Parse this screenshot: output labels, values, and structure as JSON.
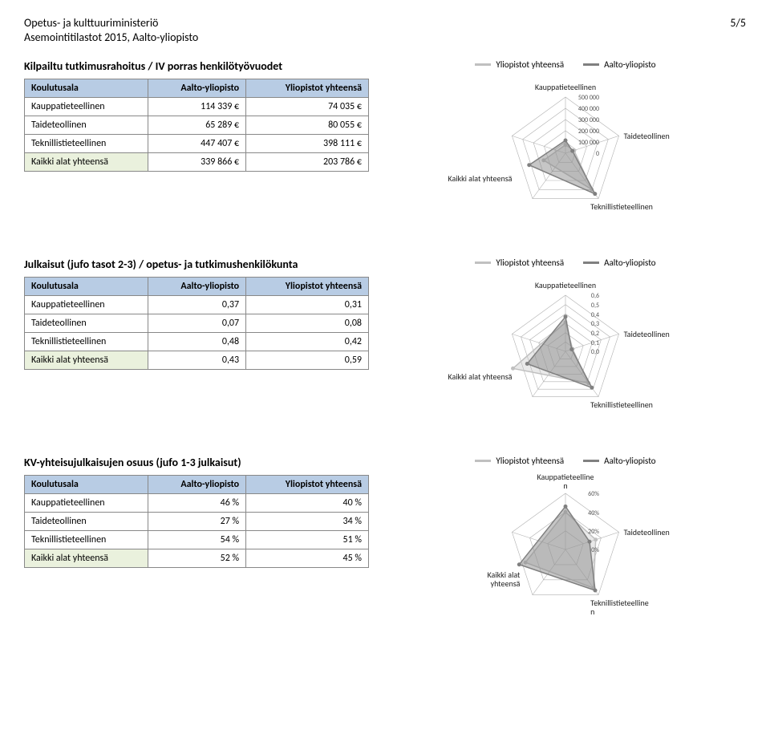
{
  "header": {
    "line1": "Opetus- ja kulttuuriministeriö",
    "line2": "Asemointitilastot 2015, Aalto-yliopisto",
    "page": "5/5"
  },
  "columns": {
    "koulutusala": "Koulutusala",
    "aalto": "Aalto-yliopisto",
    "yliopistot": "Yliopistot yhteensä"
  },
  "legend": {
    "s1": "Yliopistot yhteensä",
    "s2": "Aalto-yliopisto",
    "c1": "#c0c0c0",
    "c2": "#808080"
  },
  "axes": {
    "top": "Kauppatieteellinen",
    "right": "Taideteollinen",
    "br": "Teknillistieteellinen",
    "bl": "Kaikki alat yhteensä",
    "br2a": "Teknillistieteelline",
    "br2b": "n",
    "bl2a": "Kaikki alat",
    "bl2b": "yhteensä",
    "top2a": "Kauppatieteelline",
    "top2b": "n"
  },
  "sections": [
    {
      "title": "Kilpailtu tutkimusrahoitus / IV porras henkilötyövuodet",
      "rows": [
        {
          "label": "Kauppatieteellinen",
          "v1": "114 339 €",
          "v2": "74 035 €"
        },
        {
          "label": "Taideteollinen",
          "v1": "65 289 €",
          "v2": "80 055 €"
        },
        {
          "label": "Teknillistieteellinen",
          "v1": "447 407 €",
          "v2": "398 111 €"
        },
        {
          "label": "Kaikki alat yhteensä",
          "v1": "339 866 €",
          "v2": "203 786 €",
          "total": true
        }
      ],
      "radar": {
        "ticks": [
          "500 000",
          "400 000",
          "300 000",
          "200 000",
          "100 000",
          "0"
        ],
        "max": 500000,
        "step": 100000,
        "s1": [
          74035,
          80055,
          398111,
          203786
        ],
        "s2": [
          114339,
          65289,
          447407,
          339866
        ]
      }
    },
    {
      "title": "Julkaisut (jufo tasot 2-3) / opetus- ja tutkimushenkilökunta",
      "rows": [
        {
          "label": "Kauppatieteellinen",
          "v1": "0,37",
          "v2": "0,31"
        },
        {
          "label": "Taideteollinen",
          "v1": "0,07",
          "v2": "0,08"
        },
        {
          "label": "Teknillistieteellinen",
          "v1": "0,48",
          "v2": "0,42"
        },
        {
          "label": "Kaikki alat yhteensä",
          "v1": "0,43",
          "v2": "0,59",
          "total": true
        }
      ],
      "radar": {
        "ticks": [
          "0,6",
          "0,5",
          "0,4",
          "0,3",
          "0,2",
          "0,1",
          "0,0"
        ],
        "max": 0.6,
        "step": 0.1,
        "s1": [
          0.31,
          0.08,
          0.42,
          0.59
        ],
        "s2": [
          0.37,
          0.07,
          0.48,
          0.43
        ]
      }
    },
    {
      "title": "KV-yhteisujulkaisujen osuus (jufo 1-3 julkaisut)",
      "rows": [
        {
          "label": "Kauppatieteellinen",
          "v1": "46 %",
          "v2": "40 %"
        },
        {
          "label": "Taideteollinen",
          "v1": "27 %",
          "v2": "34 %"
        },
        {
          "label": "Teknillistieteellinen",
          "v1": "54 %",
          "v2": "51 %"
        },
        {
          "label": "Kaikki alat yhteensä",
          "v1": "52 %",
          "v2": "45 %",
          "total": true
        }
      ],
      "radar": {
        "ticks": [
          "60%",
          "40%",
          "20%",
          "0%"
        ],
        "max": 60,
        "step": 20,
        "s1": [
          40,
          34,
          51,
          45
        ],
        "s2": [
          46,
          27,
          54,
          52
        ]
      }
    }
  ],
  "style": {
    "grid_stroke": "#b0b0b0",
    "header_bg": "#b8cce4",
    "total_bg": "#eaf1dd"
  }
}
